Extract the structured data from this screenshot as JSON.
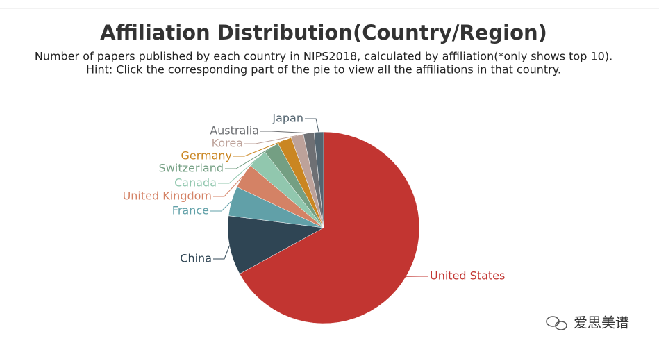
{
  "chart_data": {
    "type": "pie",
    "title": "Affiliation Distribution(Country/Region)",
    "subtitle": [
      "Number of papers published by each country in NIPS2018, calculated by affiliation(*only shows top 10).",
      "Hint: Click the corresponding part of the pie to view all the affiliations in that country."
    ],
    "categories": [
      "United States",
      "China",
      "France",
      "United Kingdom",
      "Canada",
      "Switzerland",
      "Germany",
      "Korea",
      "Australia",
      "Japan"
    ],
    "values": [
      67,
      10,
      5,
      4.2,
      3.3,
      2.6,
      2.4,
      2.1,
      1.8,
      1.6
    ],
    "colors": [
      "#c23531",
      "#2f4554",
      "#61a0a8",
      "#d48265",
      "#91c7ae",
      "#749f83",
      "#ca8622",
      "#bda29a",
      "#6e7074",
      "#546570"
    ],
    "watermark": "爱思美谱"
  }
}
